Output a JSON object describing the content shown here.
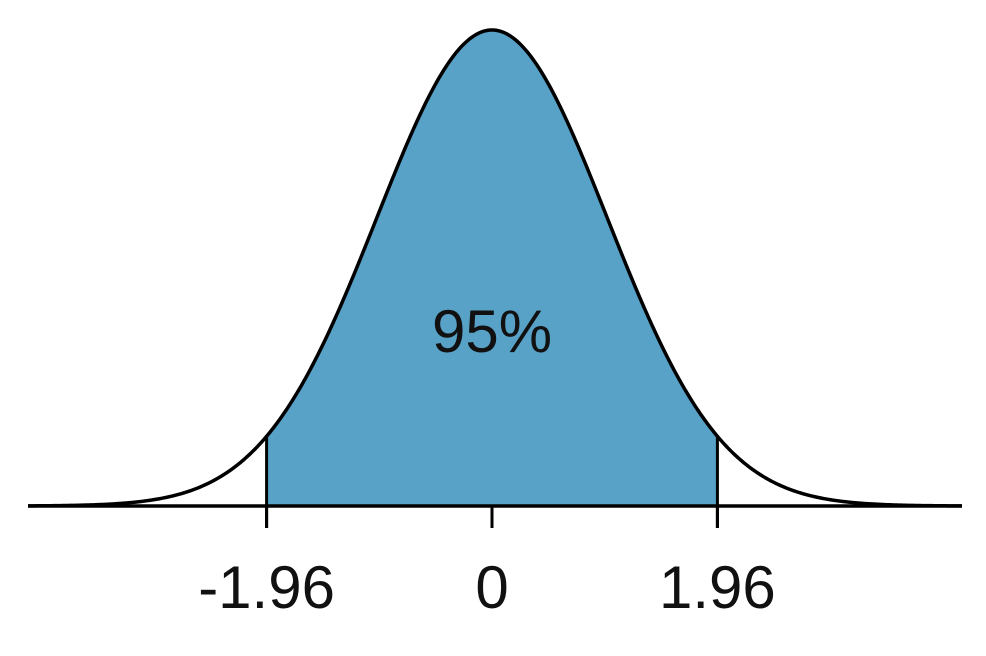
{
  "chart_data": {
    "type": "area",
    "distribution": "standard normal",
    "xlim": [
      -4.0,
      4.0
    ],
    "shaded_interval": [
      -1.96,
      1.96
    ],
    "shaded_label": "95%",
    "ticks": [
      {
        "value": -1.96,
        "label": "-1.96"
      },
      {
        "value": 0,
        "label": "0"
      },
      {
        "value": 1.96,
        "label": "1.96"
      }
    ],
    "grid": false,
    "legend": "none",
    "title": "",
    "xlabel": "",
    "ylabel": ""
  },
  "colors": {
    "fill": "#58A2C8",
    "curve": "#000000",
    "axis": "#000000",
    "text": "#111111"
  }
}
